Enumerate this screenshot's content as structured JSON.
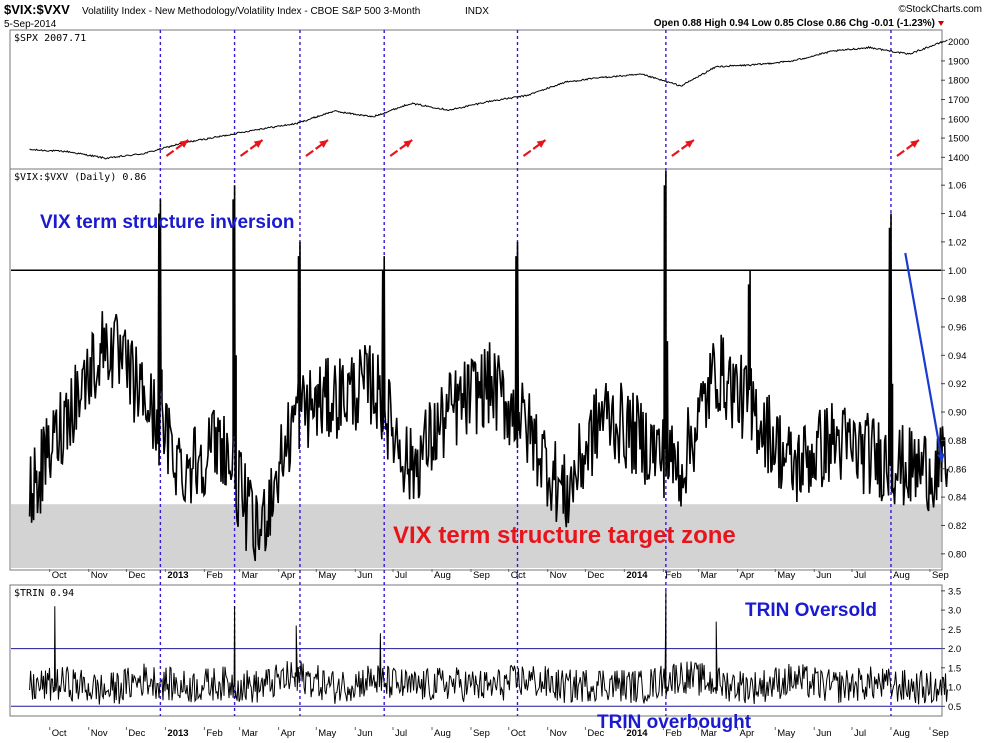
{
  "header": {
    "symbol": "$VIX:$VXV",
    "description": "Volatility Index - New Methodology/Volatility Index - CBOE S&P 500 3-Month",
    "exchange": "INDX",
    "date": "5-Sep-2014",
    "watermark": "©StockCharts.com",
    "ohlc": "Open 0.88  High 0.94  Low 0.85  Close 0.86  Chg -0.01 (-1.23%)",
    "chg_marker_color": "#cc0000"
  },
  "colors": {
    "signal_line": "#3a16d6",
    "arrow_red": "#e8141c",
    "arrow_blue": "#1a3ad0",
    "target_zone": "#d3d3d3",
    "annot_blue": "#1a1ad0",
    "annot_red": "#e8141c"
  },
  "annotations": {
    "inversion": "VIX term structure inversion",
    "target_zone": "VIX term structure target zone",
    "trin_oversold": "TRIN Oversold",
    "trin_overbought": "TRIN overbought"
  },
  "chart_data": [
    {
      "type": "line",
      "panel": "spx",
      "label": "$SPX 2007.71",
      "series": [
        {
          "name": "$SPX",
          "x": [
            "2012-09",
            "2012-10",
            "2012-11",
            "2012-12",
            "2013-01",
            "2013-02",
            "2013-03",
            "2013-04",
            "2013-05",
            "2013-06",
            "2013-07",
            "2013-08",
            "2013-09",
            "2013-10",
            "2013-11",
            "2013-12",
            "2014-01",
            "2014-02",
            "2014-03",
            "2014-04",
            "2014-05",
            "2014-06",
            "2014-07",
            "2014-08",
            "2014-09"
          ],
          "values": [
            1440,
            1430,
            1395,
            1420,
            1475,
            1510,
            1545,
            1575,
            1640,
            1610,
            1680,
            1645,
            1690,
            1720,
            1790,
            1815,
            1830,
            1770,
            1870,
            1880,
            1900,
            1950,
            1970,
            1935,
            2007.71
          ]
        }
      ],
      "ylim": [
        1350,
        2050
      ],
      "yticks": [
        "2000",
        "1900",
        "1800",
        "1700",
        "1600",
        "1500",
        "1400"
      ]
    },
    {
      "type": "line",
      "panel": "vix_vxv",
      "label": "$VIX:$VXV (Daily) 0.86",
      "series": [
        {
          "name": "$VIX:$VXV",
          "x": [
            "2012-09",
            "2012-10",
            "2012-11",
            "2012-12",
            "2013-01",
            "2013-02",
            "2013-03",
            "2013-04",
            "2013-05",
            "2013-06",
            "2013-07",
            "2013-08",
            "2013-09",
            "2013-10",
            "2013-11",
            "2013-12",
            "2014-01",
            "2014-02",
            "2014-03",
            "2014-04",
            "2014-05",
            "2014-06",
            "2014-07",
            "2014-08",
            "2014-09"
          ],
          "values": [
            0.84,
            0.9,
            0.95,
            0.91,
            0.86,
            0.88,
            0.81,
            0.9,
            0.91,
            0.92,
            0.86,
            0.9,
            0.92,
            0.89,
            0.84,
            0.9,
            0.88,
            0.86,
            0.93,
            0.9,
            0.86,
            0.88,
            0.87,
            0.86,
            0.86
          ]
        }
      ],
      "spikes": [
        {
          "date": "2012-12-28",
          "value": 1.05
        },
        {
          "date": "2013-02-25",
          "value": 1.06
        },
        {
          "date": "2013-04-18",
          "value": 1.02
        },
        {
          "date": "2013-06-24",
          "value": 1.01
        },
        {
          "date": "2013-10-08",
          "value": 1.02
        },
        {
          "date": "2014-02-03",
          "value": 1.07
        },
        {
          "date": "2014-04-11",
          "value": 1.0
        },
        {
          "date": "2014-08-01",
          "value": 1.04
        }
      ],
      "ylim": [
        0.79,
        1.07
      ],
      "reference_line": 1.0,
      "target_zone": [
        0.79,
        0.835
      ],
      "yticks": [
        "1.06",
        "1.04",
        "1.02",
        "1.00",
        "0.98",
        "0.96",
        "0.94",
        "0.92",
        "0.90",
        "0.88",
        "0.86",
        "0.84",
        "0.82",
        "0.80"
      ]
    },
    {
      "type": "line",
      "panel": "trin",
      "label": "$TRIN 0.94",
      "series": [
        {
          "name": "$TRIN",
          "x": [
            "2012-09",
            "2012-10",
            "2012-11",
            "2012-12",
            "2013-01",
            "2013-02",
            "2013-03",
            "2013-04",
            "2013-05",
            "2013-06",
            "2013-07",
            "2013-08",
            "2013-09",
            "2013-10",
            "2013-11",
            "2013-12",
            "2014-01",
            "2014-02",
            "2014-03",
            "2014-04",
            "2014-05",
            "2014-06",
            "2014-07",
            "2014-08",
            "2014-09"
          ],
          "values": [
            1.0,
            1.1,
            0.9,
            1.2,
            1.0,
            1.1,
            1.0,
            1.3,
            1.0,
            1.2,
            1.0,
            1.1,
            1.0,
            1.2,
            1.0,
            1.1,
            1.0,
            1.3,
            1.1,
            1.0,
            1.2,
            1.0,
            1.1,
            1.0,
            0.94
          ]
        }
      ],
      "spikes": [
        {
          "date": "2012-10-05",
          "value": 3.1
        },
        {
          "date": "2013-02-25",
          "value": 3.1
        },
        {
          "date": "2013-04-15",
          "value": 2.6
        },
        {
          "date": "2013-06-21",
          "value": 2.4
        },
        {
          "date": "2014-02-03",
          "value": 3.5
        },
        {
          "date": "2014-03-15",
          "value": 2.7
        }
      ],
      "ylim": [
        0.3,
        3.6
      ],
      "reference_lines": [
        2.0,
        0.5
      ],
      "yticks": [
        "3.5",
        "3.0",
        "2.5",
        "2.0",
        "1.5",
        "1.0",
        "0.5"
      ]
    }
  ],
  "x_axis": {
    "months": [
      "Oct",
      "Nov",
      "Dec",
      "2013",
      "Feb",
      "Mar",
      "Apr",
      "May",
      "Jun",
      "Jul",
      "Aug",
      "Sep",
      "Oct",
      "Nov",
      "Dec",
      "2014",
      "Feb",
      "Mar",
      "Apr",
      "May",
      "Jun",
      "Jul",
      "Aug",
      "Sep"
    ]
  },
  "signal_dates": [
    "2012-12-28",
    "2013-02-25",
    "2013-04-18",
    "2013-06-24",
    "2013-10-08",
    "2014-02-03",
    "2014-08-01"
  ]
}
